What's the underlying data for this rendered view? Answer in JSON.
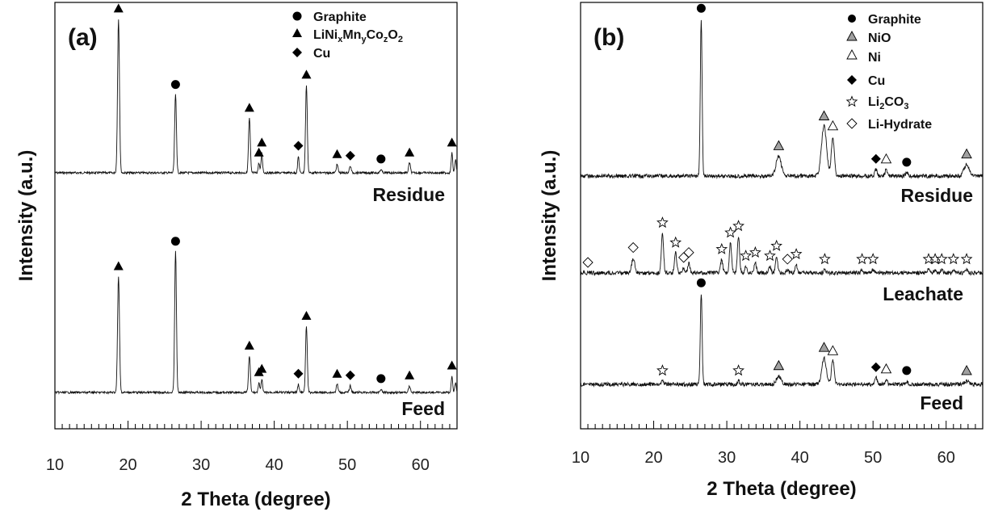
{
  "chart_data": [
    {
      "type": "line",
      "panel_label": "(a)",
      "xlabel": "2 Theta (degree)",
      "ylabel": "Intensity (a.u.)",
      "xlim": [
        10,
        65
      ],
      "xticks": [
        10,
        20,
        30,
        40,
        50,
        60
      ],
      "legend": {
        "placement": "top-right",
        "entries": [
          {
            "marker": "circle",
            "fill": "#000000",
            "label": "Graphite"
          },
          {
            "marker": "triangle",
            "fill": "#000000",
            "label": "LiNi",
            "sub": [
              "x",
              "y",
              "z",
              "2"
            ],
            "parts": [
              "Mn",
              "Co",
              "O"
            ]
          },
          {
            "marker": "diamond",
            "fill": "#000000",
            "label": "Cu"
          }
        ]
      },
      "series": [
        {
          "name": "Residue",
          "peaks": [
            {
              "x": 18.7,
              "height": 0.93,
              "width": 0.13,
              "marker": "triangle"
            },
            {
              "x": 26.5,
              "height": 0.47,
              "width": 0.12,
              "marker": "circle"
            },
            {
              "x": 36.6,
              "height": 0.33,
              "width": 0.12,
              "marker": "triangle"
            },
            {
              "x": 37.9,
              "height": 0.06,
              "width": 0.1,
              "marker": "triangle"
            },
            {
              "x": 38.3,
              "height": 0.12,
              "width": 0.1,
              "marker": "triangle"
            },
            {
              "x": 43.3,
              "height": 0.1,
              "width": 0.1,
              "marker": "diamond"
            },
            {
              "x": 44.4,
              "height": 0.53,
              "width": 0.12,
              "marker": "triangle"
            },
            {
              "x": 48.6,
              "height": 0.05,
              "width": 0.12,
              "marker": "triangle"
            },
            {
              "x": 50.4,
              "height": 0.04,
              "width": 0.12,
              "marker": "diamond"
            },
            {
              "x": 54.6,
              "height": 0.02,
              "width": 0.12,
              "marker": "circle"
            },
            {
              "x": 58.5,
              "height": 0.06,
              "width": 0.12,
              "marker": "triangle"
            },
            {
              "x": 64.3,
              "height": 0.12,
              "width": 0.1,
              "marker": "triangle"
            },
            {
              "x": 64.8,
              "height": 0.08,
              "width": 0.1,
              "marker": null
            }
          ]
        },
        {
          "name": "Feed",
          "peaks": [
            {
              "x": 18.7,
              "height": 0.7,
              "width": 0.13,
              "marker": "triangle"
            },
            {
              "x": 26.5,
              "height": 0.85,
              "width": 0.12,
              "marker": "circle"
            },
            {
              "x": 36.6,
              "height": 0.22,
              "width": 0.12,
              "marker": "triangle"
            },
            {
              "x": 37.9,
              "height": 0.06,
              "width": 0.1,
              "marker": "triangle"
            },
            {
              "x": 38.3,
              "height": 0.08,
              "width": 0.1,
              "marker": "triangle"
            },
            {
              "x": 43.3,
              "height": 0.05,
              "width": 0.1,
              "marker": "diamond"
            },
            {
              "x": 44.4,
              "height": 0.4,
              "width": 0.12,
              "marker": "triangle"
            },
            {
              "x": 48.6,
              "height": 0.05,
              "width": 0.12,
              "marker": "triangle"
            },
            {
              "x": 50.4,
              "height": 0.04,
              "width": 0.12,
              "marker": "diamond"
            },
            {
              "x": 54.6,
              "height": 0.02,
              "width": 0.12,
              "marker": "circle"
            },
            {
              "x": 58.5,
              "height": 0.04,
              "width": 0.12,
              "marker": "triangle"
            },
            {
              "x": 64.3,
              "height": 0.1,
              "width": 0.1,
              "marker": "triangle"
            },
            {
              "x": 64.8,
              "height": 0.06,
              "width": 0.1,
              "marker": null
            }
          ]
        }
      ]
    },
    {
      "type": "line",
      "panel_label": "(b)",
      "xlabel": "2 Theta (degree)",
      "ylabel": "Intensity (a.u.)",
      "xlim": [
        10,
        65
      ],
      "xticks": [
        10,
        20,
        30,
        40,
        50,
        60
      ],
      "legend": {
        "placement": "top-right",
        "entries": [
          {
            "marker": "circle",
            "fill": "#000000",
            "label": "Graphite"
          },
          {
            "marker": "triangle",
            "fill": "#a0a0a0",
            "label": "NiO"
          },
          {
            "marker": "triangle",
            "fill": "#ffffff",
            "label": "Ni"
          },
          {
            "marker": "diamond",
            "fill": "#000000",
            "label": "Cu"
          },
          {
            "marker": "star",
            "fill": "#ffffff",
            "label": "Li",
            "sub": [
              "2"
            ],
            "parts": [
              "CO"
            ],
            "tail_sub": "3"
          },
          {
            "marker": "diamond",
            "fill": "#ffffff",
            "label": "Li-Hydrate"
          }
        ]
      },
      "series": [
        {
          "name": "Residue",
          "peaks": [
            {
              "x": 26.5,
              "height": 0.95,
              "width": 0.12,
              "marker": "circle"
            },
            {
              "x": 37.1,
              "height": 0.12,
              "width": 0.35,
              "marker": "triangle-gray"
            },
            {
              "x": 43.3,
              "height": 0.3,
              "width": 0.35,
              "marker": "triangle-gray"
            },
            {
              "x": 44.5,
              "height": 0.24,
              "width": 0.2,
              "marker": "triangle-white"
            },
            {
              "x": 50.4,
              "height": 0.04,
              "width": 0.15,
              "marker": "diamond"
            },
            {
              "x": 51.8,
              "height": 0.04,
              "width": 0.15,
              "marker": "triangle-white"
            },
            {
              "x": 54.6,
              "height": 0.02,
              "width": 0.15,
              "marker": "circle"
            },
            {
              "x": 62.8,
              "height": 0.07,
              "width": 0.35,
              "marker": "triangle-gray"
            }
          ]
        },
        {
          "name": "Leachate",
          "peaks": [
            {
              "x": 11.0,
              "height": 0.0,
              "width": 0.2,
              "marker": "diamond-white"
            },
            {
              "x": 17.2,
              "height": 0.09,
              "width": 0.2,
              "marker": "diamond-white"
            },
            {
              "x": 21.2,
              "height": 0.24,
              "width": 0.15,
              "marker": "star"
            },
            {
              "x": 23.0,
              "height": 0.12,
              "width": 0.15,
              "marker": "star"
            },
            {
              "x": 24.1,
              "height": 0.03,
              "width": 0.15,
              "marker": "diamond-white"
            },
            {
              "x": 24.8,
              "height": 0.06,
              "width": 0.15,
              "marker": "diamond-white"
            },
            {
              "x": 29.3,
              "height": 0.08,
              "width": 0.15,
              "marker": "star"
            },
            {
              "x": 30.5,
              "height": 0.18,
              "width": 0.15,
              "marker": "star"
            },
            {
              "x": 31.6,
              "height": 0.22,
              "width": 0.15,
              "marker": "star"
            },
            {
              "x": 32.6,
              "height": 0.04,
              "width": 0.15,
              "marker": "star"
            },
            {
              "x": 33.9,
              "height": 0.06,
              "width": 0.15,
              "marker": "star"
            },
            {
              "x": 35.9,
              "height": 0.04,
              "width": 0.15,
              "marker": "star"
            },
            {
              "x": 36.8,
              "height": 0.1,
              "width": 0.15,
              "marker": "star"
            },
            {
              "x": 38.3,
              "height": 0.02,
              "width": 0.15,
              "marker": "diamond-white"
            },
            {
              "x": 39.5,
              "height": 0.05,
              "width": 0.15,
              "marker": "star"
            },
            {
              "x": 43.4,
              "height": 0.02,
              "width": 0.15,
              "marker": "star"
            },
            {
              "x": 48.5,
              "height": 0.02,
              "width": 0.15,
              "marker": "star"
            },
            {
              "x": 50.0,
              "height": 0.02,
              "width": 0.15,
              "marker": "star"
            },
            {
              "x": 57.6,
              "height": 0.02,
              "width": 0.15,
              "marker": "star"
            },
            {
              "x": 58.5,
              "height": 0.02,
              "width": 0.15,
              "marker": "star"
            },
            {
              "x": 59.4,
              "height": 0.02,
              "width": 0.15,
              "marker": "star"
            },
            {
              "x": 61.0,
              "height": 0.02,
              "width": 0.15,
              "marker": "star"
            },
            {
              "x": 62.8,
              "height": 0.02,
              "width": 0.15,
              "marker": "star"
            }
          ]
        },
        {
          "name": "Feed",
          "peaks": [
            {
              "x": 21.2,
              "height": 0.02,
              "width": 0.15,
              "marker": "star"
            },
            {
              "x": 26.5,
              "height": 0.55,
              "width": 0.12,
              "marker": "circle"
            },
            {
              "x": 31.6,
              "height": 0.02,
              "width": 0.15,
              "marker": "star"
            },
            {
              "x": 37.1,
              "height": 0.05,
              "width": 0.3,
              "marker": "triangle-gray"
            },
            {
              "x": 43.3,
              "height": 0.16,
              "width": 0.3,
              "marker": "triangle-gray"
            },
            {
              "x": 44.5,
              "height": 0.14,
              "width": 0.2,
              "marker": "triangle-white"
            },
            {
              "x": 50.4,
              "height": 0.04,
              "width": 0.15,
              "marker": "diamond"
            },
            {
              "x": 51.8,
              "height": 0.03,
              "width": 0.15,
              "marker": "triangle-white"
            },
            {
              "x": 54.6,
              "height": 0.02,
              "width": 0.15,
              "marker": "circle"
            },
            {
              "x": 62.8,
              "height": 0.02,
              "width": 0.3,
              "marker": "triangle-gray"
            }
          ]
        }
      ]
    }
  ]
}
